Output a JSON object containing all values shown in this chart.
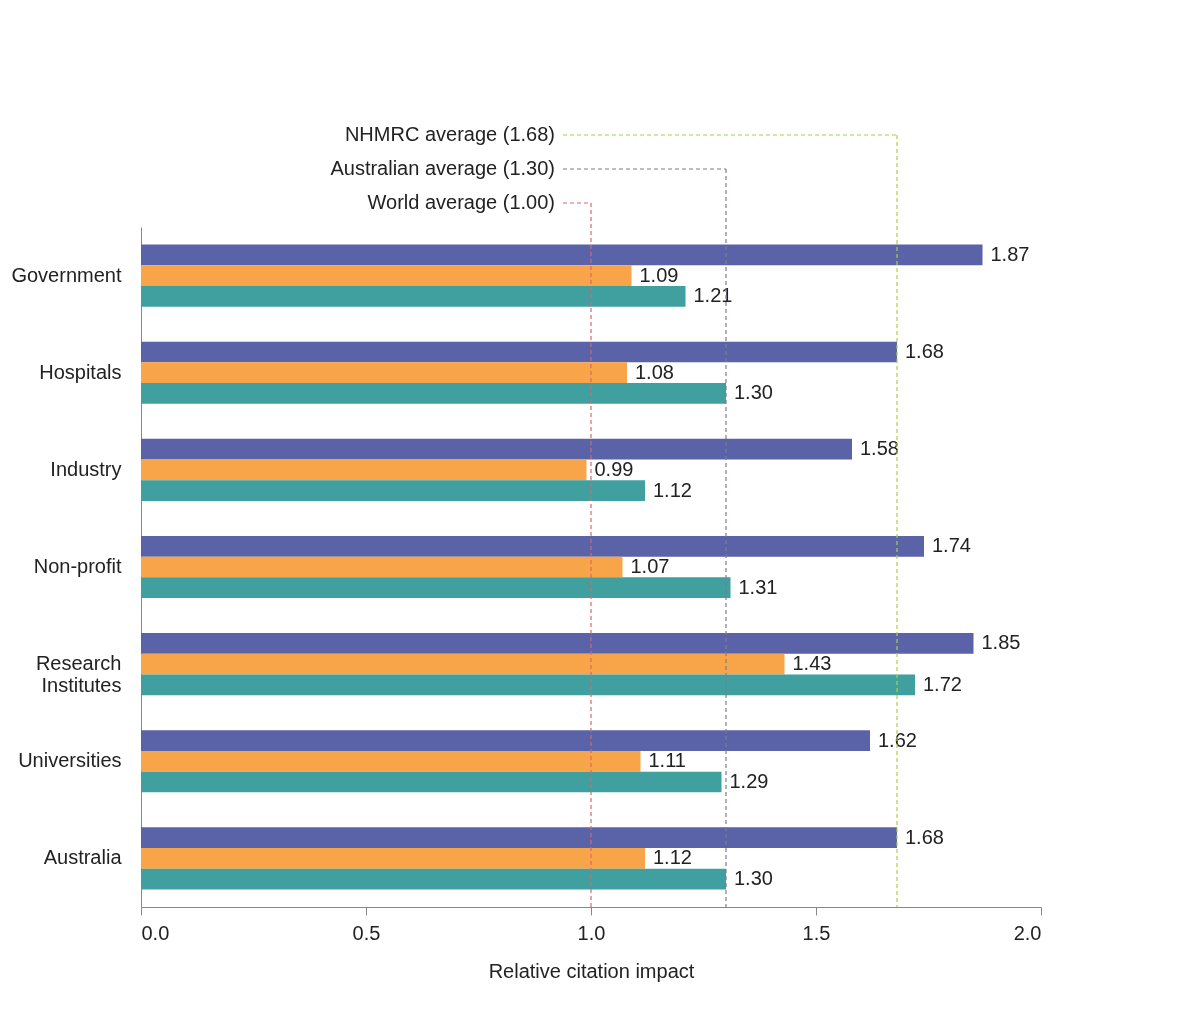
{
  "chart_data": {
    "type": "bar",
    "orientation": "horizontal",
    "xlabel": "Relative citation impact",
    "categories": [
      "Government",
      "Hospitals",
      "Industry",
      "Non-profit",
      "Research Institutes",
      "Universities",
      "Australia"
    ],
    "series": [
      {
        "color": "#5a62a8",
        "values": [
          1.87,
          1.68,
          1.58,
          1.74,
          1.85,
          1.62,
          1.68
        ],
        "value_labels": [
          "1.87",
          "1.68",
          "1.58",
          "1.74",
          "1.85",
          "1.62",
          "1.68"
        ]
      },
      {
        "color": "#f8a54a",
        "values": [
          1.09,
          1.08,
          0.99,
          1.07,
          1.43,
          1.11,
          1.12
        ],
        "value_labels": [
          "1.09",
          "1.08",
          "0.99",
          "1.07",
          "1.43",
          "1.11",
          "1.12"
        ]
      },
      {
        "color": "#3fa09f",
        "values": [
          1.21,
          1.3,
          1.12,
          1.31,
          1.72,
          1.29,
          1.3
        ],
        "value_labels": [
          "1.21",
          "1.30",
          "1.12",
          "1.31",
          "1.72",
          "1.29",
          "1.30"
        ]
      }
    ],
    "xlim": [
      0,
      2
    ],
    "xticks": [
      {
        "value": 0,
        "label": "0.0"
      },
      {
        "value": 0.5,
        "label": "0.5"
      },
      {
        "value": 1,
        "label": "1.0"
      },
      {
        "value": 1.5,
        "label": "1.5"
      },
      {
        "value": 2,
        "label": "2.0"
      }
    ],
    "ref_lines": [
      {
        "axis": "x",
        "value": 1.0,
        "label": "World average (1.00)",
        "color": "#d9686b",
        "line_style": "dashed"
      },
      {
        "axis": "x",
        "value": 1.3,
        "label": "Australian average (1.30)",
        "color": "#7a7f8c",
        "line_style": "dashed"
      },
      {
        "axis": "x",
        "value": 1.68,
        "label": "NHMRC average (1.68)",
        "color": "#a8d04a",
        "line_style": "dashed"
      }
    ],
    "grid": false,
    "legend": false
  }
}
